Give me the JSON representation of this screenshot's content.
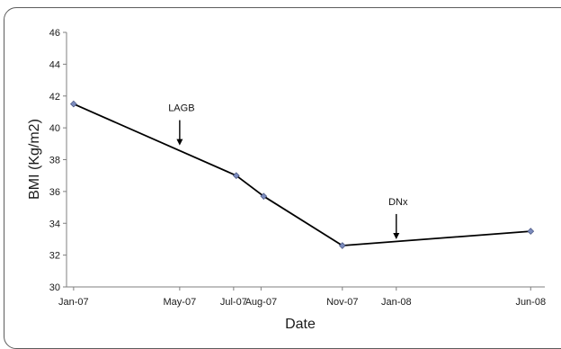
{
  "chart_data": {
    "type": "line",
    "title": "",
    "xlabel": "Date",
    "ylabel": "BMI (Kg/m2)",
    "ylim": [
      30,
      46
    ],
    "yticks": [
      30,
      32,
      34,
      36,
      38,
      40,
      42,
      44,
      46
    ],
    "xlim": [
      "2006-12-24",
      "2008-06-17"
    ],
    "xticks": [
      {
        "date": "2007-01-01",
        "label": "Jan-07"
      },
      {
        "date": "2007-05-01",
        "label": "May-07"
      },
      {
        "date": "2007-07-01",
        "label": "Jul-07"
      },
      {
        "date": "2007-08-01",
        "label": "Aug-07"
      },
      {
        "date": "2007-11-01",
        "label": "Nov-07"
      },
      {
        "date": "2008-01-01",
        "label": "Jan-08"
      },
      {
        "date": "2008-06-01",
        "label": "Jun-08"
      }
    ],
    "series": [
      {
        "points": [
          {
            "x": "2007-01-01",
            "y": 41.5
          },
          {
            "x": "2007-07-04",
            "y": 37.0
          },
          {
            "x": "2007-08-04",
            "y": 35.7
          },
          {
            "x": "2007-11-01",
            "y": 32.6
          },
          {
            "x": "2008-06-01",
            "y": 33.5
          }
        ]
      }
    ],
    "annotations": [
      {
        "text": "LAGB",
        "x": "2007-05-01",
        "arrow_tip_y": 38.9
      },
      {
        "text": "DNx",
        "x": "2008-01-01",
        "arrow_tip_y": 33.0
      }
    ],
    "grid": false,
    "legend": "none",
    "colors": {
      "line": "#000000",
      "marker": "#7b8bbd",
      "axis": "#7f7f7f"
    }
  }
}
